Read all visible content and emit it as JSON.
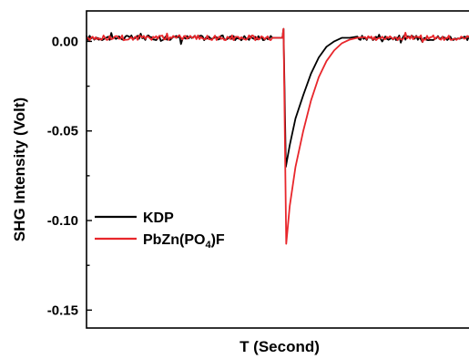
{
  "chart_data": {
    "type": "line",
    "title": "",
    "xlabel": "T (Second)",
    "ylabel": "SHG Intensity (Volt)",
    "xlim": [
      0,
      1
    ],
    "ylim": [
      -0.16,
      0.017
    ],
    "yticks": [
      0.0,
      -0.05,
      -0.1,
      -0.15
    ],
    "ytick_labels": [
      "0.00",
      "-0.05",
      "-0.10",
      "-0.15"
    ],
    "grid": false,
    "legend_position": "lower-left",
    "series": [
      {
        "name": "KDP",
        "color": "#000000",
        "x": [
          0.0,
          0.08,
          0.2,
          0.35,
          0.48,
          0.506,
          0.509,
          0.515,
          0.525,
          0.54,
          0.56,
          0.58,
          0.6,
          0.62,
          0.64,
          0.66,
          0.68,
          0.7,
          1.0
        ],
        "y": [
          0.002,
          0.002,
          0.002,
          0.002,
          0.002,
          0.002,
          0.007,
          -0.07,
          -0.058,
          -0.043,
          -0.03,
          -0.018,
          -0.009,
          -0.003,
          0.0,
          0.002,
          0.002,
          0.002,
          0.002
        ]
      },
      {
        "name": "PbZn(PO4)F",
        "label_parts": {
          "pre": "PbZn(PO",
          "sub": "4",
          "post": ")F"
        },
        "color": "#e8262b",
        "x": [
          0.0,
          0.08,
          0.2,
          0.35,
          0.48,
          0.506,
          0.509,
          0.516,
          0.525,
          0.54,
          0.56,
          0.58,
          0.6,
          0.62,
          0.64,
          0.66,
          0.68,
          0.7,
          0.72,
          1.0
        ],
        "y": [
          0.002,
          0.002,
          0.002,
          0.002,
          0.002,
          0.002,
          0.007,
          -0.113,
          -0.092,
          -0.07,
          -0.05,
          -0.033,
          -0.02,
          -0.011,
          -0.005,
          -0.001,
          0.001,
          0.002,
          0.002,
          0.002
        ]
      }
    ]
  }
}
